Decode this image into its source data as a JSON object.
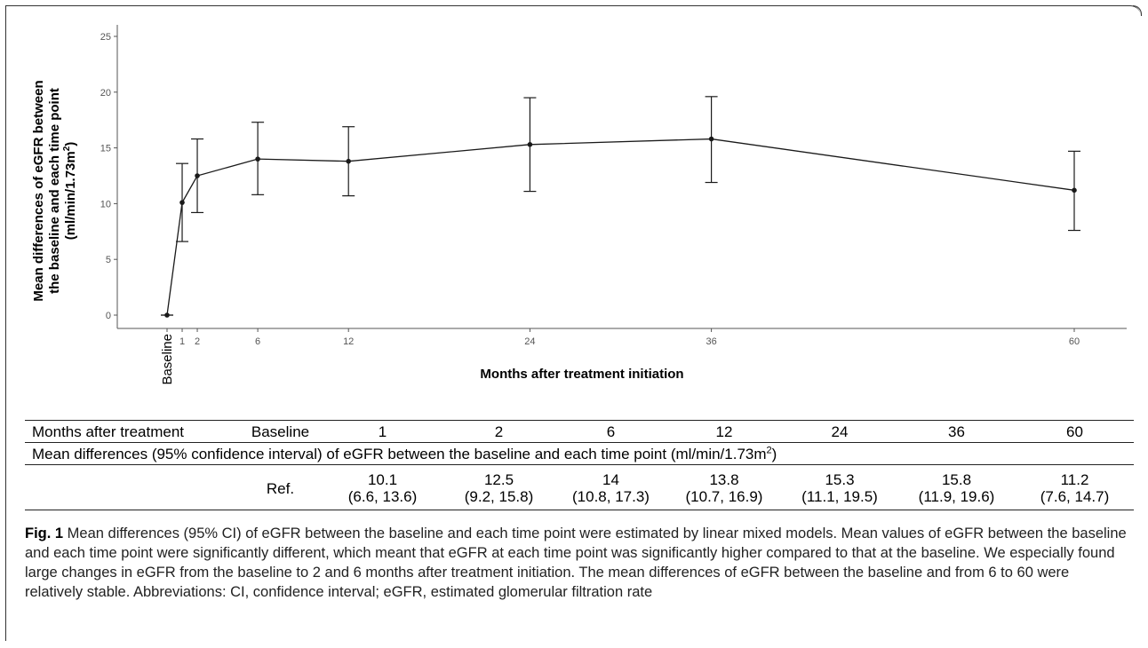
{
  "chart_data": {
    "type": "line",
    "x": [
      0,
      1,
      2,
      6,
      12,
      24,
      36,
      60
    ],
    "x_tick_labels": [
      "Baseline",
      "1",
      "2",
      "6",
      "12",
      "24",
      "36",
      "60"
    ],
    "values": [
      0,
      10.1,
      12.5,
      14,
      13.8,
      15.3,
      15.8,
      11.2
    ],
    "ci_lower": [
      0,
      6.6,
      9.2,
      10.8,
      10.7,
      11.1,
      11.9,
      7.6
    ],
    "ci_upper": [
      0,
      13.6,
      15.8,
      17.3,
      16.9,
      19.5,
      19.6,
      14.7
    ],
    "xlabel": "Months after treatment initiation",
    "ylabel_lines": [
      "Mean differences of eGFR between",
      "the baseline and each time point"
    ],
    "ylabel_unit_prefix": "(ml/min/1.73m",
    "ylabel_unit_sup": "2",
    "ylabel_unit_suffix": ")",
    "ylim": [
      -1,
      26
    ],
    "y_ticks": [
      0,
      5,
      10,
      15,
      20,
      25
    ],
    "grid": false,
    "colors": {
      "line": "#1a1a1a",
      "axis": "#555555"
    }
  },
  "table": {
    "row1": [
      "Months after treatment",
      "Baseline",
      "1",
      "2",
      "6",
      "12",
      "24",
      "36",
      "60"
    ],
    "row2_text": "Mean differences (95% confidence interval) of eGFR between the baseline and each time point (ml/min/1.73m",
    "row2_sup": "2",
    "row2_suffix": ")",
    "row3_ref": "Ref.",
    "row3_means": [
      "10.1",
      "12.5",
      "14",
      "13.8",
      "15.3",
      "15.8",
      "11.2"
    ],
    "row3_cis": [
      "(6.6, 13.6)",
      "(9.2, 15.8)",
      "(10.8, 17.3)",
      "(10.7, 16.9)",
      "(11.1, 19.5)",
      "(11.9, 19.6)",
      "(7.6, 14.7)"
    ]
  },
  "caption": {
    "label": "Fig. 1",
    "text": " Mean differences (95% CI) of eGFR between the baseline and each time point were estimated by linear mixed models. Mean values of eGFR between the baseline and each time point were significantly different, which meant that eGFR at each time point was significantly higher compared to that at the baseline. We especially found large changes in eGFR from the baseline to 2 and 6 months after treatment initiation. The mean differences of eGFR between the baseline and from 6 to 60 were relatively stable. Abbreviations: CI, confidence interval; eGFR, estimated glomerular filtration rate"
  }
}
